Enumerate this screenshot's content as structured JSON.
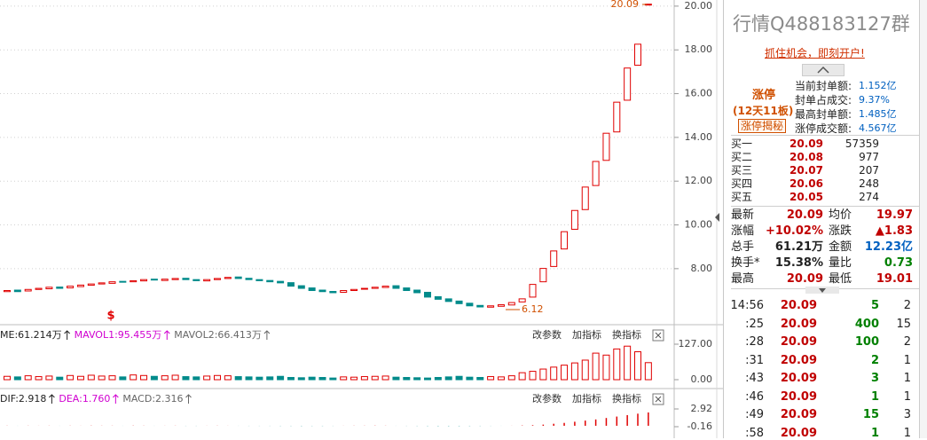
{
  "header": {
    "title": "行情Q488183127群",
    "promo": "抓住机会，即刻开户!"
  },
  "limit_up": {
    "status": "涨停",
    "streak": "(12天11板)",
    "button": "涨停揭秘",
    "stats": [
      [
        "当前封单额:",
        "1.152亿"
      ],
      [
        "封单占成交:",
        "9.37%"
      ],
      [
        "最高封单额:",
        "1.485亿"
      ],
      [
        "涨停成交额:",
        "4.567亿"
      ]
    ]
  },
  "bids": [
    [
      "买一",
      "20.09",
      "57359"
    ],
    [
      "买二",
      "20.08",
      "977"
    ],
    [
      "买三",
      "20.07",
      "207"
    ],
    [
      "买四",
      "20.06",
      "248"
    ],
    [
      "买五",
      "20.05",
      "274"
    ]
  ],
  "quote": [
    [
      "最新",
      "20.09",
      "均价",
      "19.97"
    ],
    [
      "涨幅",
      "+10.02%",
      "涨跌",
      "▲1.83"
    ],
    [
      "总手",
      "61.21万",
      "金额",
      "12.23亿"
    ],
    [
      "换手*",
      "15.38%",
      "量比",
      "0.73"
    ],
    [
      "最高",
      "20.09",
      "最低",
      "19.01"
    ]
  ],
  "trades": [
    [
      "14:56",
      "20.09",
      "5",
      "2"
    ],
    [
      ":25",
      "20.09",
      "400",
      "15"
    ],
    [
      ":28",
      "20.09",
      "100",
      "2"
    ],
    [
      ":31",
      "20.09",
      "2",
      "1"
    ],
    [
      ":43",
      "20.09",
      "3",
      "1"
    ],
    [
      ":46",
      "20.09",
      "1",
      "1"
    ],
    [
      ":49",
      "20.09",
      "15",
      "3"
    ],
    [
      ":58",
      "20.09",
      "1",
      "1"
    ]
  ],
  "toolbar": [
    "改参数",
    "加指标",
    "换指标"
  ],
  "chart_data": {
    "type": "candlestick",
    "open": [
      6.95,
      7.02,
      6.98,
      7.05,
      7.08,
      7.16,
      7.12,
      7.18,
      7.24,
      7.3,
      7.33,
      7.42,
      7.4,
      7.44,
      7.52,
      7.46,
      7.5,
      7.56,
      7.5,
      7.44,
      7.5,
      7.55,
      7.62,
      7.56,
      7.5,
      7.46,
      7.42,
      7.36,
      7.22,
      7.12,
      7.02,
      6.96,
      6.92,
      7.0,
      7.06,
      7.1,
      7.14,
      7.22,
      7.12,
      7.02,
      6.92,
      6.72,
      6.62,
      6.52,
      6.42,
      6.32,
      6.24,
      6.28,
      6.34,
      6.48,
      6.7,
      7.4,
      8.1,
      8.9,
      9.8,
      10.7,
      11.8,
      12.95,
      14.25,
      15.7,
      17.3,
      20.09
    ],
    "close": [
      7.0,
      6.95,
      7.05,
      7.1,
      7.15,
      7.1,
      7.2,
      7.25,
      7.3,
      7.35,
      7.4,
      7.38,
      7.45,
      7.5,
      7.48,
      7.52,
      7.55,
      7.5,
      7.45,
      7.5,
      7.55,
      7.6,
      7.55,
      7.5,
      7.45,
      7.4,
      7.35,
      7.2,
      7.1,
      7.0,
      6.95,
      6.9,
      7.0,
      7.05,
      7.1,
      7.15,
      7.2,
      7.1,
      7.0,
      6.9,
      6.7,
      6.6,
      6.5,
      6.4,
      6.3,
      6.25,
      6.3,
      6.35,
      6.45,
      6.62,
      7.28,
      8.01,
      8.81,
      9.69,
      10.66,
      11.73,
      12.9,
      14.19,
      15.61,
      17.17,
      18.26,
      20.09
    ],
    "ylim": [
      5.48,
      20.28
    ],
    "yticks": [
      {
        "value": 20,
        "label": "20.00"
      },
      {
        "value": 18,
        "label": "18.00"
      },
      {
        "value": 16,
        "label": "16.00"
      },
      {
        "value": 14,
        "label": "14.00"
      },
      {
        "value": 12,
        "label": "12.00"
      },
      {
        "value": 10,
        "label": "10.00"
      },
      {
        "value": 8,
        "label": "8.00"
      }
    ],
    "grid": true,
    "up_color": "#e00000",
    "down_color": "#008b8b",
    "annotations": {
      "high": "20.09",
      "low": "6.12",
      "signal": "$"
    },
    "volume": {
      "legend": [
        "ME:61.214万",
        "MAVOL1:95.455万",
        "MAVOL2:66.413万"
      ],
      "values": [
        12,
        10,
        14,
        11,
        13,
        9,
        15,
        12,
        16,
        13,
        14,
        10,
        17,
        15,
        12,
        14,
        16,
        11,
        10,
        13,
        15,
        14,
        11,
        10,
        9,
        10,
        12,
        8,
        7,
        9,
        8,
        6,
        10,
        9,
        11,
        12,
        13,
        9,
        8,
        7,
        6,
        8,
        10,
        12,
        9,
        8,
        11,
        10,
        14,
        25,
        30,
        38,
        45,
        52,
        60,
        70,
        95,
        88,
        110,
        120,
        100,
        61
      ],
      "ylim": [
        -31.7,
        190.5
      ],
      "yticks": [
        {
          "value": 127,
          "label": "127.00"
        },
        {
          "value": 0,
          "label": "0.00"
        }
      ]
    },
    "macd": {
      "legend": [
        "DIF:2.918",
        "DEA:1.760",
        "MACD:2.316"
      ],
      "values": [
        0.02,
        -0.01,
        0.02,
        0.01,
        0.02,
        -0.01,
        0.02,
        0.01,
        0.03,
        0.02,
        0.02,
        -0.01,
        0.03,
        0.02,
        -0.01,
        0.01,
        0.02,
        -0.02,
        -0.02,
        0.01,
        0.02,
        0.01,
        -0.01,
        -0.02,
        -0.02,
        -0.02,
        -0.03,
        -0.03,
        -0.04,
        -0.03,
        -0.03,
        -0.02,
        0.01,
        0.02,
        0.02,
        0.03,
        0.02,
        -0.01,
        -0.02,
        -0.03,
        -0.04,
        -0.05,
        -0.05,
        -0.05,
        -0.04,
        -0.03,
        -0.02,
        -0.01,
        0.01,
        0.05,
        0.1,
        0.2,
        0.35,
        0.5,
        0.7,
        0.9,
        1.1,
        1.35,
        1.6,
        1.85,
        2.1,
        2.316
      ],
      "ylim": [
        -2.16,
        6.15
      ],
      "yticks": [
        2.92,
        -0.16
      ]
    }
  }
}
